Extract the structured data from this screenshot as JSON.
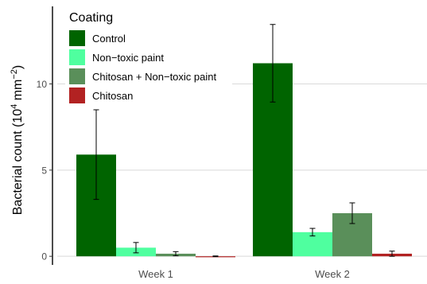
{
  "chart_data": {
    "type": "bar",
    "categories": [
      "Week 1",
      "Week 2"
    ],
    "ylabel": "Bacterial count (10",
    "ylabel_exponent_1": "4",
    "ylabel_unit": " mm",
    "ylabel_exponent_2": "−2",
    "ylabel_close": ")",
    "ylim": [
      -0.5,
      14.5
    ],
    "yticks": [
      0,
      5,
      10
    ],
    "ytick_labels": [
      "0",
      "5",
      "10"
    ],
    "grid": true,
    "legend_title": "Coating",
    "legend_position": "top-left",
    "series": [
      {
        "name": "Control",
        "color": "#006400",
        "values": [
          5.9,
          11.2
        ],
        "errors": [
          2.6,
          2.25
        ]
      },
      {
        "name": "Non−toxic paint",
        "color": "#4fff9f",
        "values": [
          0.5,
          1.4
        ],
        "errors": [
          0.3,
          0.22
        ]
      },
      {
        "name": "Chitosan + Non−toxic paint",
        "color": "#5a8f5a",
        "values": [
          0.15,
          2.5
        ],
        "errors": [
          0.12,
          0.6
        ]
      },
      {
        "name": "Chitosan",
        "color": "#b22222",
        "values": [
          0.0,
          0.15
        ],
        "errors": [
          0.02,
          0.15
        ]
      }
    ]
  }
}
